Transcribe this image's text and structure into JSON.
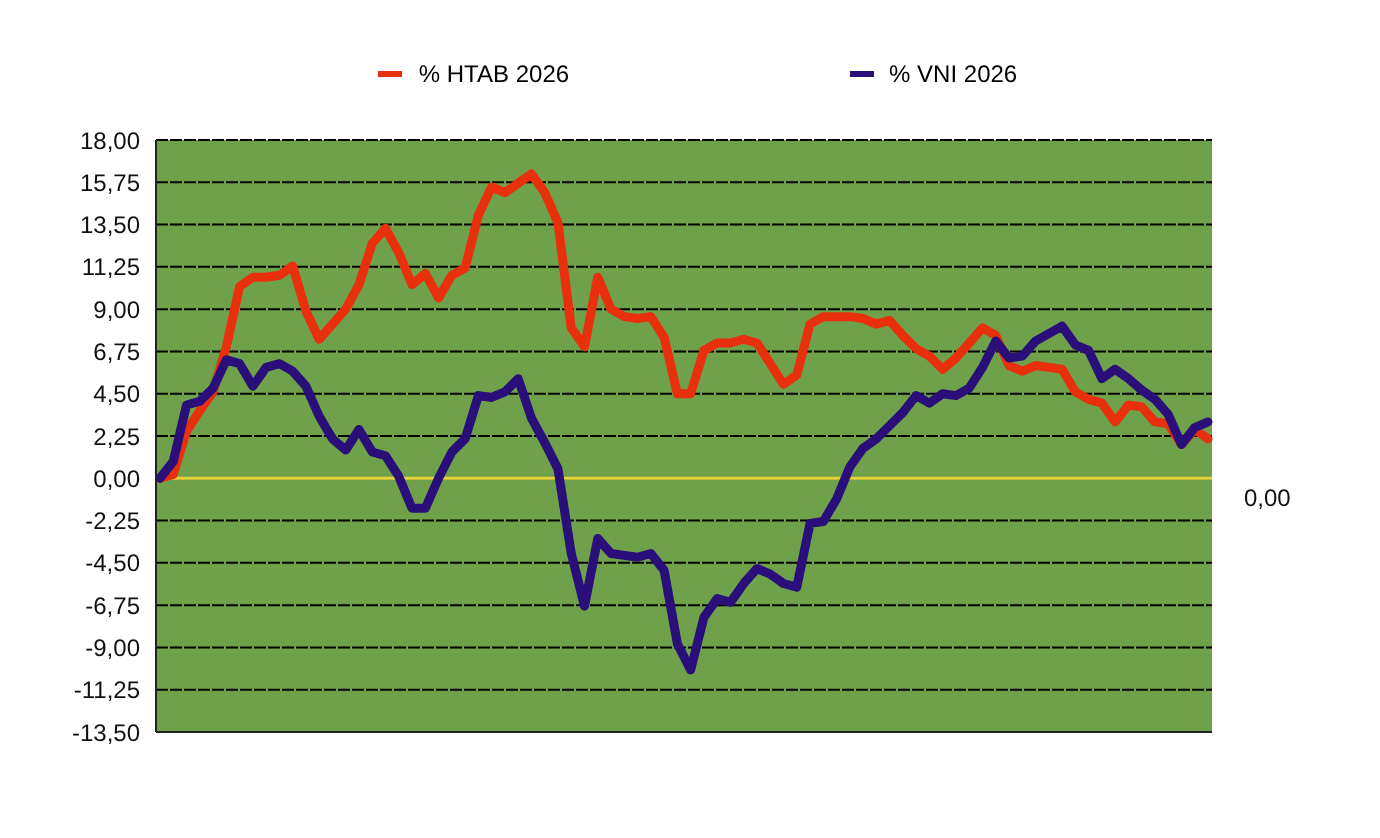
{
  "chart_data": {
    "type": "line",
    "categories": [
      null,
      null,
      null,
      null,
      null,
      null,
      null,
      null,
      null,
      null,
      null,
      null,
      null,
      null,
      null,
      null,
      null,
      null,
      null,
      null,
      null,
      null,
      null,
      null,
      null,
      null,
      null,
      null,
      null,
      null,
      null,
      null,
      null,
      null,
      null,
      null,
      null,
      null,
      null,
      null,
      null,
      null,
      null,
      null,
      null,
      null,
      null,
      null,
      null,
      null,
      null,
      null,
      null,
      null,
      null,
      null,
      null,
      null,
      null,
      null,
      null,
      null,
      null,
      null,
      null,
      null,
      null,
      null,
      null,
      null,
      null,
      null,
      null,
      null,
      null,
      null,
      null,
      null,
      null,
      null
    ],
    "series": [
      {
        "name": "% HTAB 2026",
        "color": "#e8300e",
        "values": [
          0,
          0.2,
          2.5,
          3.6,
          4.6,
          7.0,
          10.2,
          10.7,
          10.7,
          10.8,
          11.3,
          8.9,
          7.4,
          8.2,
          9.0,
          10.3,
          12.5,
          13.3,
          12.0,
          10.3,
          10.9,
          9.6,
          10.8,
          11.2,
          14.0,
          15.5,
          15.2,
          15.7,
          16.2,
          15.2,
          13.6,
          8.0,
          7.0,
          10.7,
          9.0,
          8.6,
          8.5,
          8.6,
          7.5,
          4.5,
          4.5,
          6.8,
          7.2,
          7.2,
          7.4,
          7.2,
          6.1,
          5.0,
          5.5,
          8.2,
          8.6,
          8.6,
          8.6,
          8.5,
          8.2,
          8.4,
          7.6,
          6.9,
          6.5,
          5.8,
          6.4,
          7.2,
          8.0,
          7.6,
          6.0,
          5.7,
          6.0,
          5.9,
          5.8,
          4.6,
          4.2,
          4.0,
          3.0,
          3.9,
          3.8,
          3.0,
          2.9,
          1.8,
          2.6,
          2.1
        ]
      },
      {
        "name": "% VNI 2026",
        "color": "#2a0f7a",
        "values": [
          0,
          0.9,
          3.9,
          4.1,
          4.8,
          6.3,
          6.1,
          4.9,
          5.9,
          6.1,
          5.7,
          4.9,
          3.3,
          2.1,
          1.5,
          2.6,
          1.4,
          1.2,
          0.1,
          -1.6,
          -1.6,
          0.0,
          1.4,
          2.1,
          4.4,
          4.3,
          4.6,
          5.3,
          3.2,
          1.9,
          0.5,
          -4.0,
          -6.8,
          -3.2,
          -4.0,
          -4.1,
          -4.2,
          -4.0,
          -4.9,
          -8.8,
          -10.2,
          -7.4,
          -6.4,
          -6.6,
          -5.6,
          -4.8,
          -5.1,
          -5.6,
          -5.8,
          -2.4,
          -2.3,
          -1.1,
          0.6,
          1.6,
          2.1,
          2.8,
          3.5,
          4.4,
          4.0,
          4.5,
          4.4,
          4.8,
          5.9,
          7.3,
          6.4,
          6.5,
          7.3,
          7.7,
          8.1,
          7.1,
          6.8,
          5.3,
          5.8,
          5.3,
          4.7,
          4.2,
          3.4,
          1.8,
          2.7,
          3.0
        ]
      }
    ],
    "ylim": [
      -13.5,
      18
    ],
    "yticks": [
      {
        "value": -13.5,
        "label": "-13,50"
      },
      {
        "value": -11.25,
        "label": "-11,25"
      },
      {
        "value": -9,
        "label": "-9,00"
      },
      {
        "value": -6.75,
        "label": "-6,75"
      },
      {
        "value": -4.5,
        "label": "-4,50"
      },
      {
        "value": -2.25,
        "label": "-2,25"
      },
      {
        "value": 0,
        "label": "0,00"
      },
      {
        "value": 2.25,
        "label": "2,25"
      },
      {
        "value": 4.5,
        "label": "4,50"
      },
      {
        "value": 6.75,
        "label": "6,75"
      },
      {
        "value": 9,
        "label": "9,00"
      },
      {
        "value": 11.25,
        "label": "11,25"
      },
      {
        "value": 13.5,
        "label": "13,50"
      },
      {
        "value": 15.75,
        "label": "15,75"
      },
      {
        "value": 18,
        "label": "18,00"
      }
    ],
    "ref_lines": [
      {
        "axis": "y",
        "value": 0,
        "color": "#e8d23a"
      }
    ],
    "annotations": [
      "0,00"
    ],
    "grid": "y",
    "legend": "top",
    "tick_labels": "y",
    "marker": "none",
    "line_style": "solid"
  }
}
